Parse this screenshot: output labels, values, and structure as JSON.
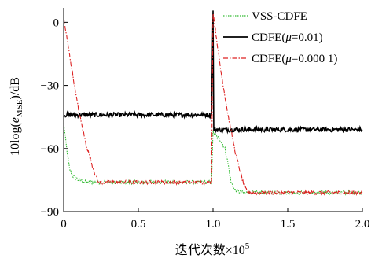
{
  "chart_data": {
    "type": "line",
    "title": "",
    "xlabel_main": "迭代次数×10",
    "xlabel_sup": "5",
    "ylabel_prefix": "10log(",
    "ylabel_e": "e",
    "ylabel_sub": "MSE",
    "ylabel_suffix": ")/dB",
    "xlim": [
      0,
      2.0
    ],
    "ylim": [
      -90,
      5
    ],
    "xticks": [
      0,
      0.5,
      1.0,
      1.5,
      2.0
    ],
    "xtick_labels": [
      "0",
      "0.5",
      "1.0",
      "1.5",
      "2.0"
    ],
    "yticks": [
      0,
      -30,
      -60,
      -90
    ],
    "ytick_labels": [
      "0",
      "−30",
      "−60",
      "−90"
    ],
    "grid": false,
    "legend_position": "top-right",
    "series": [
      {
        "name": "VSS-CDFE",
        "label_parts": [
          "VSS-CDFE"
        ],
        "color": "#33bb33",
        "style": "dotted",
        "points": [
          [
            0,
            -48
          ],
          [
            0.02,
            -60
          ],
          [
            0.04,
            -70
          ],
          [
            0.06,
            -73
          ],
          [
            0.1,
            -75
          ],
          [
            0.15,
            -76
          ],
          [
            0.25,
            -76
          ],
          [
            0.4,
            -76
          ],
          [
            0.6,
            -76
          ],
          [
            0.8,
            -76
          ],
          [
            0.99,
            -76
          ],
          [
            1.0,
            -52
          ],
          [
            1.02,
            -54
          ],
          [
            1.05,
            -56
          ],
          [
            1.08,
            -60
          ],
          [
            1.1,
            -67
          ],
          [
            1.12,
            -76
          ],
          [
            1.15,
            -80
          ],
          [
            1.2,
            -81
          ],
          [
            1.4,
            -81
          ],
          [
            1.6,
            -81
          ],
          [
            1.8,
            -81
          ],
          [
            2.0,
            -81
          ]
        ]
      },
      {
        "name": "CDFE(μ=0.01)",
        "label_parts": [
          "CDFE(",
          "μ",
          "=0.01)"
        ],
        "color": "#000000",
        "style": "solid",
        "points": [
          [
            0,
            -44
          ],
          [
            0.2,
            -44
          ],
          [
            0.4,
            -44
          ],
          [
            0.6,
            -44
          ],
          [
            0.8,
            -44
          ],
          [
            0.99,
            -44
          ],
          [
            1.0,
            5
          ],
          [
            1.005,
            -51
          ],
          [
            1.2,
            -51
          ],
          [
            1.4,
            -51
          ],
          [
            1.6,
            -51
          ],
          [
            1.8,
            -51
          ],
          [
            2.0,
            -51
          ]
        ]
      },
      {
        "name": "CDFE(μ=0.000 1)",
        "label_parts": [
          "CDFE(",
          "μ",
          "=0.000 1)"
        ],
        "color": "#dd2222",
        "style": "dashdot",
        "points": [
          [
            0,
            2
          ],
          [
            0.05,
            -20
          ],
          [
            0.1,
            -42
          ],
          [
            0.15,
            -58
          ],
          [
            0.2,
            -70
          ],
          [
            0.23,
            -76
          ],
          [
            0.3,
            -76
          ],
          [
            0.5,
            -76
          ],
          [
            0.7,
            -76
          ],
          [
            0.99,
            -76
          ],
          [
            1.0,
            5
          ],
          [
            1.05,
            -22
          ],
          [
            1.1,
            -44
          ],
          [
            1.15,
            -62
          ],
          [
            1.2,
            -76
          ],
          [
            1.23,
            -81
          ],
          [
            1.3,
            -81
          ],
          [
            1.5,
            -81
          ],
          [
            1.7,
            -81
          ],
          [
            2.0,
            -81
          ]
        ]
      }
    ]
  }
}
